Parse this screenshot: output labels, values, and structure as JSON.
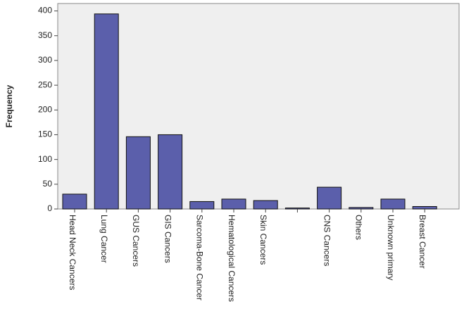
{
  "chart_data": {
    "type": "bar",
    "y_label": "Frequency",
    "categories": [
      "Head Neck Cancers",
      "Lung Cancer",
      "GUS Cancers",
      "GIS Cancers",
      "Sarcoma-Bone Cancer",
      "Hematological Cancers",
      "Skin Cancers",
      null,
      "CNS Cancers",
      "Others",
      "Unknown primary",
      "Breast Cancer"
    ],
    "values": [
      30,
      394,
      146,
      150,
      15,
      20,
      17,
      2,
      44,
      3,
      20,
      5
    ],
    "color": "#5b5fab",
    "ylim": [
      0,
      415
    ],
    "yticks": [
      0,
      50,
      100,
      150,
      200,
      250,
      300,
      350,
      400
    ]
  }
}
